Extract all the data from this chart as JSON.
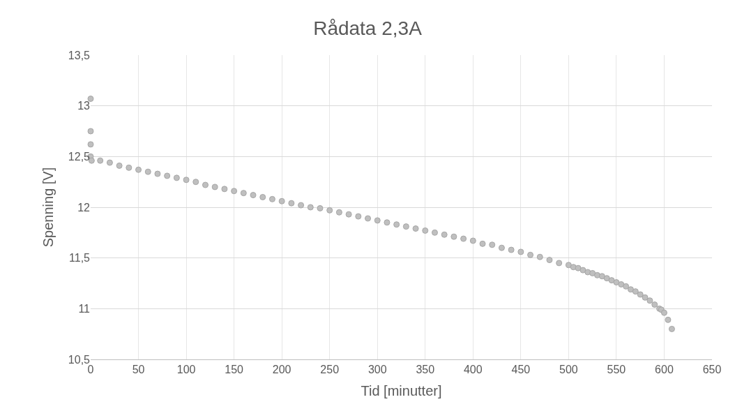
{
  "chart_data": {
    "type": "scatter",
    "title": "Rådata 2,3A",
    "xlabel": "Tid [minutter]",
    "ylabel": "Spenning [V]",
    "x": [
      0,
      0,
      0,
      0,
      1,
      10,
      20,
      30,
      40,
      50,
      60,
      70,
      80,
      90,
      100,
      110,
      120,
      130,
      140,
      150,
      160,
      170,
      180,
      190,
      200,
      210,
      220,
      230,
      240,
      250,
      260,
      270,
      280,
      290,
      300,
      310,
      320,
      330,
      340,
      350,
      360,
      370,
      380,
      390,
      400,
      410,
      420,
      430,
      440,
      450,
      460,
      470,
      480,
      490,
      500,
      505,
      510,
      515,
      520,
      525,
      530,
      535,
      540,
      545,
      550,
      555,
      560,
      565,
      570,
      575,
      580,
      585,
      590,
      595,
      597,
      600,
      604,
      608
    ],
    "series": [
      {
        "color": "#bfbfbf",
        "values": [
          13.07,
          12.75,
          12.62,
          12.5,
          12.46,
          12.46,
          12.44,
          12.41,
          12.39,
          12.37,
          12.35,
          12.33,
          12.31,
          12.29,
          12.27,
          12.25,
          12.22,
          12.2,
          12.18,
          12.16,
          12.14,
          12.12,
          12.1,
          12.08,
          12.06,
          12.04,
          12.02,
          12.0,
          11.99,
          11.97,
          11.95,
          11.93,
          11.91,
          11.89,
          11.87,
          11.85,
          11.83,
          11.81,
          11.79,
          11.77,
          11.75,
          11.73,
          11.71,
          11.69,
          11.67,
          11.64,
          11.63,
          11.6,
          11.58,
          11.56,
          11.53,
          11.51,
          11.48,
          11.45,
          11.43,
          11.41,
          11.4,
          11.38,
          11.36,
          11.35,
          11.33,
          11.32,
          11.3,
          11.28,
          11.26,
          11.24,
          11.22,
          11.19,
          11.17,
          11.14,
          11.11,
          11.08,
          11.04,
          11.0,
          10.99,
          10.96,
          10.89,
          10.8
        ]
      }
    ],
    "xlim": [
      0,
      650
    ],
    "xticks": [
      0,
      50,
      100,
      150,
      200,
      250,
      300,
      350,
      400,
      450,
      500,
      550,
      600,
      650
    ],
    "ylim": [
      10.5,
      13.5
    ],
    "yticks": [
      {
        "value": 10.5,
        "label": "10,5"
      },
      11,
      {
        "value": 11.5,
        "label": "11,5"
      },
      12,
      {
        "value": 12.5,
        "label": "12,5"
      },
      13,
      {
        "value": 13.5,
        "label": "13,5"
      }
    ],
    "grid": true,
    "marker": "circle"
  }
}
